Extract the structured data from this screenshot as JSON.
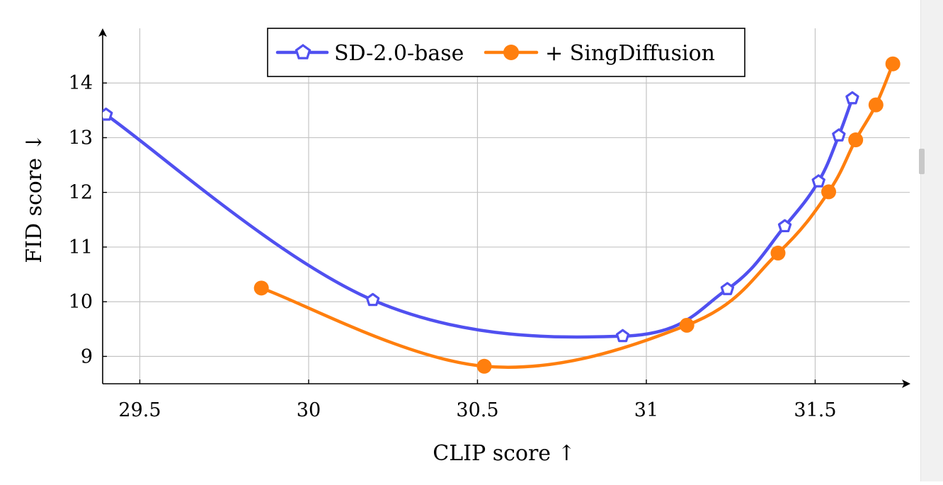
{
  "chart_data": {
    "type": "line",
    "xlabel": "CLIP score ↑",
    "ylabel": "FID score ↓",
    "xlim": [
      29.39,
      31.78
    ],
    "ylim": [
      8.5,
      15.0
    ],
    "x_ticks": [
      29.5,
      30,
      30.5,
      31,
      31.5
    ],
    "x_tick_labels": [
      "29.5",
      "30",
      "30.5",
      "31",
      "31.5"
    ],
    "y_ticks": [
      9,
      10,
      11,
      12,
      13,
      14
    ],
    "y_tick_labels": [
      "9",
      "10",
      "11",
      "12",
      "13",
      "14"
    ],
    "grid": true,
    "legend_position": "top-center",
    "series": [
      {
        "name": "SD-2.0-base",
        "color": "#5050f0",
        "marker": "pentagon",
        "x": [
          29.4,
          30.19,
          30.93,
          31.24,
          31.41,
          31.51,
          31.57,
          31.61
        ],
        "y": [
          13.42,
          10.03,
          9.37,
          10.23,
          11.38,
          12.2,
          13.04,
          13.72
        ]
      },
      {
        "name": "+ SingDiffusion",
        "color": "#ff7f0e",
        "marker": "circle",
        "x": [
          29.86,
          30.52,
          31.12,
          31.39,
          31.54,
          31.62,
          31.68,
          31.73
        ],
        "y": [
          10.25,
          8.82,
          9.57,
          10.89,
          12.01,
          12.96,
          13.6,
          14.35
        ]
      }
    ]
  }
}
